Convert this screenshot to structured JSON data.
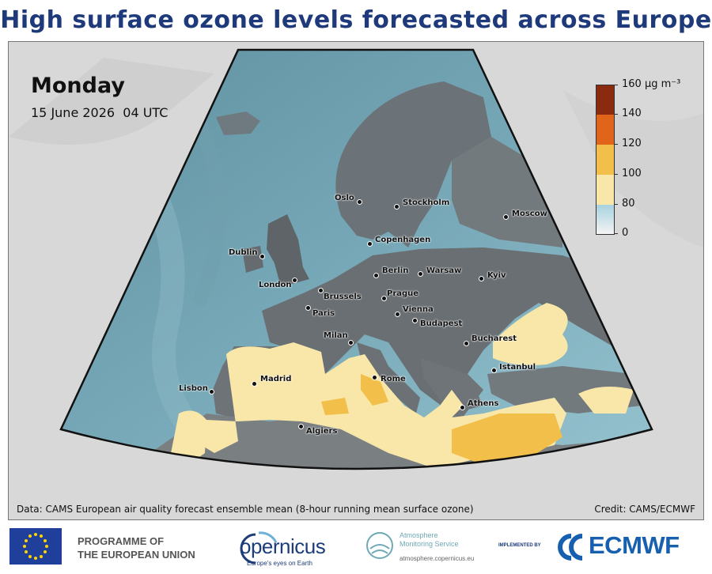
{
  "title": "High surface ozone levels forecasted across Europe",
  "forecast": {
    "day": "Monday",
    "date": "15 June 2026",
    "time": "04 UTC"
  },
  "colorbar": {
    "unit": "µg m⁻³",
    "ticks": [
      "0",
      "80",
      "100",
      "120",
      "140",
      "160"
    ],
    "top_label": "160 µg m⁻³",
    "colors": {
      "0": "#f4f4f4",
      "80": "#a6d2de",
      "100": "#f8e7a8",
      "120": "#f2c04a",
      "140": "#e0641a",
      "160": "#8a2b10"
    }
  },
  "cities": [
    {
      "name": "Oslo"
    },
    {
      "name": "Stockholm"
    },
    {
      "name": "Moscow"
    },
    {
      "name": "Copenhagen"
    },
    {
      "name": "Dublin"
    },
    {
      "name": "Berlin"
    },
    {
      "name": "Warsaw"
    },
    {
      "name": "Kyiv"
    },
    {
      "name": "London"
    },
    {
      "name": "Brussels"
    },
    {
      "name": "Prague"
    },
    {
      "name": "Paris"
    },
    {
      "name": "Vienna"
    },
    {
      "name": "Budapest"
    },
    {
      "name": "Milan"
    },
    {
      "name": "Bucharest"
    },
    {
      "name": "Istanbul"
    },
    {
      "name": "Rome"
    },
    {
      "name": "Madrid"
    },
    {
      "name": "Lisbon"
    },
    {
      "name": "Athens"
    },
    {
      "name": "Algiers"
    }
  ],
  "source_text": "Data: CAMS European air quality forecast ensemble mean (8-hour running mean surface ozone)",
  "credit_text": "Credit: CAMS/ECMWF",
  "footer": {
    "eu_line1": "PROGRAMME OF",
    "eu_line2": "THE EUROPEAN UNION",
    "copernicus_name": "opernicus",
    "copernicus_tagline": "Europe's eyes on Earth",
    "ams_line1": "Atmosphere",
    "ams_line2": "Monitoring Service",
    "ams_url": "atmosphere.copernicus.eu",
    "implemented_by": "IMPLEMENTED BY",
    "ecmwf_name": "ECMWF"
  }
}
